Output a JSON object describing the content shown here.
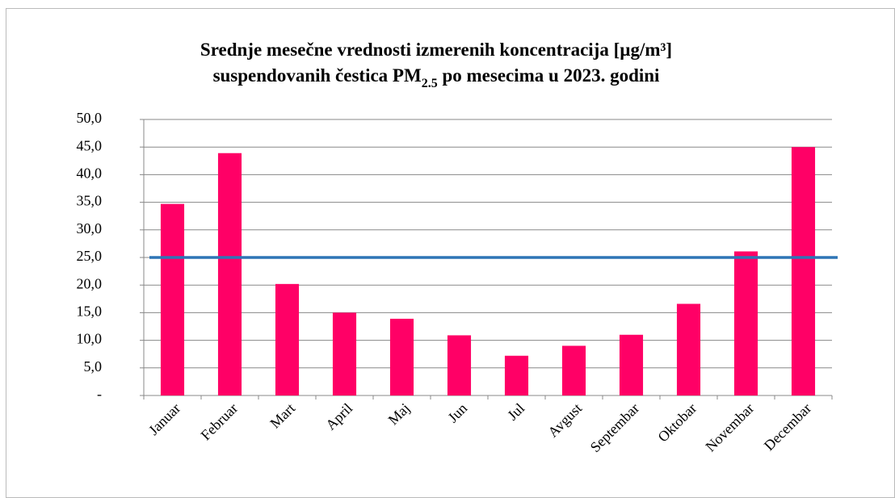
{
  "chart_data": {
    "type": "bar",
    "title": [
      [
        "Srednje mesečne vrednosti izmerenih koncentracija  [µg/m³]"
      ],
      [
        "suspendovanih čestica PM",
        "2.5",
        " po mesecima u 2023. godini"
      ]
    ],
    "categories": [
      "Januar",
      "Februar",
      "Mart",
      "April",
      "Maj",
      "Jun",
      "Jul",
      "Avgust",
      "Septembar",
      "Oktobar",
      "Novembar",
      "Decembar"
    ],
    "values": [
      34.7,
      43.9,
      20.2,
      15.0,
      13.9,
      10.9,
      7.2,
      9.0,
      11.0,
      16.6,
      26.1,
      45.0
    ],
    "color": "#ff0066",
    "reference_line": {
      "value": 25,
      "color": "#2e75b6"
    },
    "ylim": [
      0,
      50
    ],
    "yticks": [
      {
        "value": 0,
        "label": "-"
      },
      {
        "value": 5,
        "label": "5,0"
      },
      {
        "value": 10,
        "label": "10,0"
      },
      {
        "value": 15,
        "label": "15,0"
      },
      {
        "value": 20,
        "label": "20,0"
      },
      {
        "value": 25,
        "label": "25,0"
      },
      {
        "value": 30,
        "label": "30,0"
      },
      {
        "value": 35,
        "label": "35,0"
      },
      {
        "value": 40,
        "label": "40,0"
      },
      {
        "value": 45,
        "label": "45,0"
      },
      {
        "value": 50,
        "label": "50,0"
      }
    ],
    "grid": true
  }
}
